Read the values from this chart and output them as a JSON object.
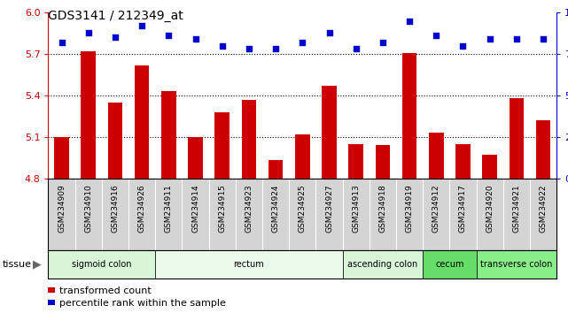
{
  "title": "GDS3141 / 212349_at",
  "samples": [
    "GSM234909",
    "GSM234910",
    "GSM234916",
    "GSM234926",
    "GSM234911",
    "GSM234914",
    "GSM234915",
    "GSM234923",
    "GSM234924",
    "GSM234925",
    "GSM234927",
    "GSM234913",
    "GSM234918",
    "GSM234919",
    "GSM234912",
    "GSM234917",
    "GSM234920",
    "GSM234921",
    "GSM234922"
  ],
  "bar_values": [
    5.1,
    5.72,
    5.35,
    5.62,
    5.43,
    5.1,
    5.28,
    5.37,
    4.93,
    5.12,
    5.47,
    5.05,
    5.04,
    5.71,
    5.13,
    5.05,
    4.97,
    5.38,
    5.22
  ],
  "dot_values": [
    82,
    88,
    85,
    92,
    86,
    84,
    80,
    78,
    78,
    82,
    88,
    78,
    82,
    95,
    86,
    80,
    84,
    84,
    84
  ],
  "ylim_left": [
    4.8,
    6.0
  ],
  "ylim_right": [
    0,
    100
  ],
  "yticks_left": [
    4.8,
    5.1,
    5.4,
    5.7,
    6.0
  ],
  "yticks_right": [
    0,
    25,
    50,
    75,
    100
  ],
  "hlines": [
    5.1,
    5.4,
    5.7
  ],
  "bar_color": "#cc0000",
  "dot_color": "#0000cc",
  "plot_bg_color": "#ffffff",
  "label_bg_color": "#d4d4d4",
  "tissue_groups": [
    {
      "label": "sigmoid colon",
      "start": 0,
      "end": 3,
      "color": "#d8f5d8"
    },
    {
      "label": "rectum",
      "start": 4,
      "end": 10,
      "color": "#eafaea"
    },
    {
      "label": "ascending colon",
      "start": 11,
      "end": 13,
      "color": "#d8f5d8"
    },
    {
      "label": "cecum",
      "start": 14,
      "end": 15,
      "color": "#66dd66"
    },
    {
      "label": "transverse colon",
      "start": 16,
      "end": 18,
      "color": "#88ee88"
    }
  ],
  "legend_bar_label": "transformed count",
  "legend_dot_label": "percentile rank within the sample",
  "tissue_label": "tissue",
  "bar_width": 0.55
}
